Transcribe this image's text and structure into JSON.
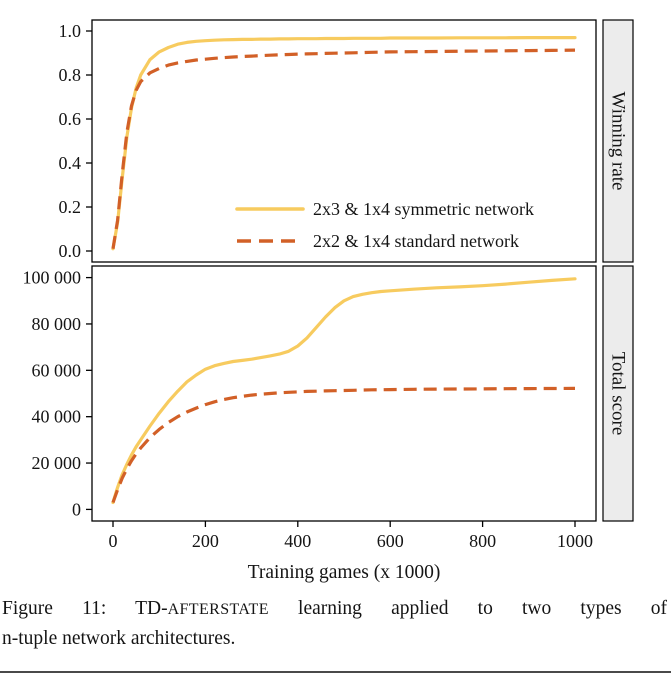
{
  "figure": {
    "x_axis": {
      "title": "Training games (x 1000)",
      "range": [
        0,
        1000
      ],
      "tick_values": [
        0,
        200,
        400,
        600,
        800,
        1000
      ],
      "tick_labels": [
        "0",
        "200",
        "400",
        "600",
        "800",
        "1000"
      ]
    },
    "colors": {
      "symmetric_line": "#F7CB5F",
      "standard_line": "#D26027",
      "strip_background": "#ECECEC",
      "panel_border": "#000000"
    }
  },
  "chart_data": [
    {
      "type": "line",
      "strip_label": "Winning rate",
      "ylabel": "Winning rate",
      "xlabel": "Training games (x 1000)",
      "xlim": [
        0,
        1000
      ],
      "ylim": [
        0.0,
        1.0
      ],
      "grid": false,
      "legend_position": "inside-bottom-right",
      "ytick_values": [
        0.0,
        0.2,
        0.4,
        0.6,
        0.8,
        1.0
      ],
      "ytick_labels": [
        "0.0",
        "0.2",
        "0.4",
        "0.6",
        "0.8",
        "1.0"
      ],
      "x": [
        0,
        10,
        20,
        30,
        40,
        50,
        60,
        80,
        100,
        120,
        140,
        160,
        180,
        200,
        220,
        240,
        260,
        280,
        300,
        320,
        340,
        360,
        380,
        400,
        420,
        440,
        460,
        480,
        500,
        520,
        540,
        560,
        580,
        600,
        650,
        700,
        750,
        800,
        850,
        900,
        950,
        1000
      ],
      "series": [
        {
          "name": "2x3 & 1x4 symmetric network",
          "color": "#F7CB5F",
          "style": "solid",
          "values": [
            0.01,
            0.13,
            0.33,
            0.52,
            0.65,
            0.74,
            0.8,
            0.87,
            0.905,
            0.925,
            0.94,
            0.948,
            0.953,
            0.956,
            0.958,
            0.96,
            0.961,
            0.962,
            0.962,
            0.963,
            0.963,
            0.964,
            0.964,
            0.965,
            0.965,
            0.965,
            0.966,
            0.966,
            0.966,
            0.967,
            0.967,
            0.967,
            0.967,
            0.968,
            0.968,
            0.968,
            0.969,
            0.969,
            0.969,
            0.97,
            0.97,
            0.97
          ]
        },
        {
          "name": "2x2 & 1x4 standard network",
          "color": "#D26027",
          "style": "dashed",
          "values": [
            0.01,
            0.14,
            0.35,
            0.54,
            0.66,
            0.73,
            0.77,
            0.81,
            0.83,
            0.845,
            0.855,
            0.862,
            0.868,
            0.872,
            0.876,
            0.879,
            0.882,
            0.884,
            0.886,
            0.888,
            0.89,
            0.892,
            0.893,
            0.895,
            0.896,
            0.897,
            0.898,
            0.899,
            0.9,
            0.901,
            0.902,
            0.903,
            0.904,
            0.905,
            0.906,
            0.907,
            0.908,
            0.909,
            0.91,
            0.911,
            0.912,
            0.913
          ]
        }
      ]
    },
    {
      "type": "line",
      "strip_label": "Total score",
      "ylabel": "Total score",
      "xlabel": "Training games (x 1000)",
      "xlim": [
        0,
        1000
      ],
      "ylim": [
        0,
        100000
      ],
      "grid": false,
      "ytick_values": [
        0,
        20000,
        40000,
        60000,
        80000,
        100000
      ],
      "ytick_labels": [
        "0",
        "20 000",
        "40 000",
        "60 000",
        "80 000",
        "100 000"
      ],
      "x": [
        0,
        10,
        20,
        30,
        40,
        50,
        60,
        80,
        100,
        120,
        140,
        160,
        180,
        200,
        220,
        240,
        260,
        280,
        300,
        320,
        340,
        360,
        380,
        400,
        420,
        440,
        460,
        480,
        500,
        520,
        540,
        560,
        580,
        600,
        650,
        700,
        750,
        800,
        850,
        900,
        950,
        1000
      ],
      "series": [
        {
          "name": "2x3 & 1x4 symmetric network",
          "color": "#F7CB5F",
          "style": "solid",
          "values": [
            3000,
            9500,
            15000,
            19500,
            23500,
            27000,
            30000,
            36000,
            41500,
            46500,
            51000,
            55000,
            58000,
            60500,
            62000,
            63000,
            63800,
            64300,
            64800,
            65500,
            66200,
            67000,
            68200,
            70500,
            74000,
            78500,
            83000,
            87000,
            90000,
            91800,
            92800,
            93500,
            94000,
            94300,
            95000,
            95600,
            96000,
            96500,
            97200,
            98000,
            98800,
            99500
          ]
        },
        {
          "name": "2x2 & 1x4 standard network",
          "color": "#D26027",
          "style": "dashed",
          "values": [
            3000,
            8500,
            13500,
            17500,
            21000,
            24000,
            26500,
            31000,
            34500,
            37500,
            40000,
            42000,
            43700,
            45200,
            46400,
            47400,
            48200,
            48800,
            49300,
            49700,
            50000,
            50300,
            50500,
            50700,
            50900,
            51000,
            51100,
            51200,
            51300,
            51400,
            51500,
            51600,
            51650,
            51700,
            51800,
            51900,
            51950,
            52000,
            52050,
            52100,
            52150,
            52200
          ]
        }
      ]
    }
  ],
  "caption": {
    "part1": "Figure 11: TD-",
    "smallcaps": "AFTERSTATE",
    "part2": " learning applied to two types of",
    "line2": "n-tuple network architectures."
  }
}
